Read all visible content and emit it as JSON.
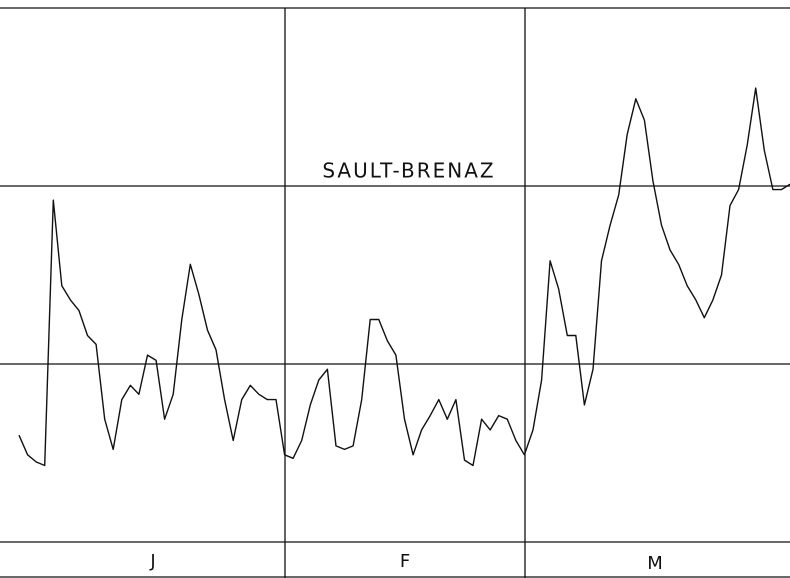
{
  "chart_data": {
    "type": "line",
    "title": "SAULT-BRENAZ",
    "months": [
      "J",
      "F",
      "M"
    ],
    "x": [
      0,
      1,
      2,
      3,
      4,
      5,
      6,
      7,
      8,
      9,
      10,
      11,
      12,
      13,
      14,
      15,
      16,
      17,
      18,
      19,
      20,
      21,
      22,
      23,
      24,
      25,
      26,
      27,
      28,
      29,
      30,
      31,
      32,
      33,
      34,
      35,
      36,
      37,
      38,
      39,
      40,
      41,
      42,
      43,
      44,
      45,
      46,
      47,
      48,
      49,
      50,
      51,
      52,
      53,
      54,
      55,
      56,
      57,
      58,
      59,
      60,
      61,
      62,
      63,
      64,
      65,
      66,
      67,
      68,
      69,
      70,
      71,
      72,
      73,
      74,
      75,
      76,
      77,
      78,
      79,
      80,
      81,
      82,
      83,
      84,
      85,
      86,
      87,
      88,
      89,
      90
    ],
    "series": [
      {
        "name": "SAULT-BRENAZ",
        "color": "#111111",
        "values": [
          0.6,
          0.49,
          0.45,
          0.43,
          1.92,
          1.44,
          1.36,
          1.3,
          1.16,
          1.11,
          0.69,
          0.52,
          0.8,
          0.88,
          0.83,
          1.05,
          1.02,
          0.69,
          0.83,
          1.25,
          1.56,
          1.39,
          1.19,
          1.08,
          0.8,
          0.57,
          0.8,
          0.88,
          0.83,
          0.8,
          0.8,
          0.49,
          0.47,
          0.57,
          0.77,
          0.91,
          0.97,
          0.54,
          0.52,
          0.54,
          0.8,
          1.25,
          1.25,
          1.13,
          1.05,
          0.69,
          0.49,
          0.63,
          0.71,
          0.8,
          0.69,
          0.8,
          0.46,
          0.43,
          0.69,
          0.63,
          0.71,
          0.69,
          0.57,
          0.49,
          0.63,
          0.91,
          1.58,
          1.42,
          1.16,
          1.16,
          0.77,
          0.97,
          1.58,
          1.78,
          1.95,
          2.29,
          2.49,
          2.37,
          2.03,
          1.78,
          1.64,
          1.56,
          1.44,
          1.36,
          1.26,
          1.36,
          1.5,
          1.89,
          1.98,
          2.23,
          2.55,
          2.2,
          1.98,
          1.98,
          2.01
        ]
      }
    ],
    "xlim": [
      0,
      90
    ],
    "ylim": [
      0,
      3
    ],
    "yticks": [
      0,
      1,
      2,
      3
    ],
    "grid": true
  }
}
